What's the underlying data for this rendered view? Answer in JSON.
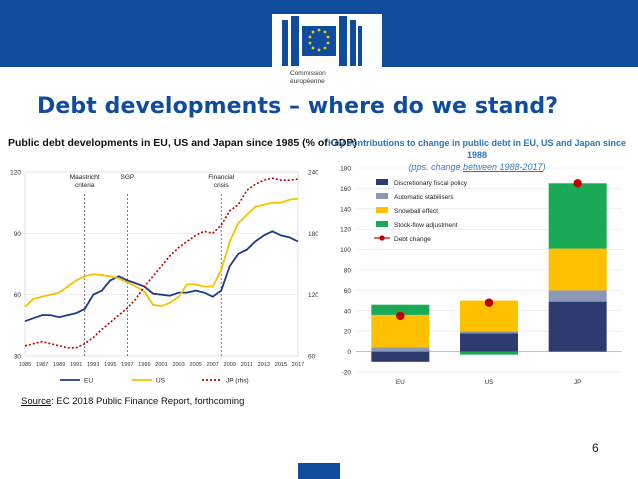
{
  "header": {
    "logo_label": "European Commission emblem",
    "logo_text_line1": "Commission",
    "logo_text_line2": "européenne"
  },
  "slide": {
    "title": "Debt developments – where do we stand?",
    "source_label": "Source",
    "source_text": ": EC 2018 Public Finance Report, forthcoming",
    "page_number": "6"
  },
  "colors": {
    "brand": "#0f4c9c",
    "eu": "#1f3c88",
    "us": "#f5c200",
    "jp": "#c00000",
    "discretionary": "#2e3b6e",
    "auto": "#8a98b8",
    "snowball": "#ffc000",
    "stockflow": "#1aaa55",
    "debtchange": "#c00000"
  },
  "chart_data": [
    {
      "type": "line",
      "title": "Public debt developments in EU, US and Japan since 1985 (% of GDP)",
      "x_tick_labels": [
        "1985",
        "1987",
        "1989",
        "1991",
        "1993",
        "1995",
        "1997",
        "1999",
        "2001",
        "2003",
        "2005",
        "2007",
        "2009",
        "2011",
        "2013",
        "2015",
        "2017"
      ],
      "x_range": [
        1985,
        2017
      ],
      "y_left_ticks": [
        30,
        60,
        90,
        120
      ],
      "y_left_range": [
        30,
        120
      ],
      "y_right_ticks": [
        60,
        120,
        180,
        240
      ],
      "y_right_range": [
        60,
        240
      ],
      "annotations": [
        {
          "year": 1992,
          "line1": "Maastricht",
          "line2": "criteria"
        },
        {
          "year": 1997,
          "line1": "SGP",
          "line2": ""
        },
        {
          "year": 2008,
          "line1": "Financial",
          "line2": "crisis"
        }
      ],
      "series": [
        {
          "name": "EU",
          "axis": "left",
          "x": [
            1985,
            1986,
            1987,
            1988,
            1989,
            1990,
            1991,
            1992,
            1993,
            1994,
            1995,
            1996,
            1997,
            1998,
            1999,
            2000,
            2001,
            2002,
            2003,
            2004,
            2005,
            2006,
            2007,
            2008,
            2009,
            2010,
            2011,
            2012,
            2013,
            2014,
            2015,
            2016,
            2017
          ],
          "values": [
            47,
            48.5,
            50,
            50,
            49,
            50,
            51,
            53,
            60,
            62,
            67,
            69,
            67,
            65.5,
            64,
            60.5,
            60,
            59.5,
            61,
            61,
            62,
            61,
            59,
            62,
            74,
            80,
            82,
            86,
            89,
            91,
            89,
            88,
            86
          ]
        },
        {
          "name": "US",
          "axis": "left",
          "x": [
            1985,
            1986,
            1987,
            1988,
            1989,
            1990,
            1991,
            1992,
            1993,
            1994,
            1995,
            1996,
            1997,
            1998,
            1999,
            2000,
            2001,
            2002,
            2003,
            2004,
            2005,
            2006,
            2007,
            2008,
            2009,
            2010,
            2011,
            2012,
            2013,
            2014,
            2015,
            2016,
            2017
          ],
          "values": [
            54,
            58,
            59,
            60,
            61,
            64,
            67,
            69,
            70,
            69.5,
            69,
            68,
            66,
            64,
            61.5,
            55,
            54.5,
            56,
            59,
            65,
            65,
            64,
            64,
            72,
            86,
            95,
            99,
            103,
            104,
            105,
            105,
            106.5,
            107
          ]
        },
        {
          "name": "JP (rhs)",
          "axis": "right",
          "x": [
            1985,
            1986,
            1987,
            1988,
            1989,
            1990,
            1991,
            1992,
            1993,
            1994,
            1995,
            1996,
            1997,
            1998,
            1999,
            2000,
            2001,
            2002,
            2003,
            2004,
            2005,
            2006,
            2007,
            2008,
            2009,
            2010,
            2011,
            2012,
            2013,
            2014,
            2015,
            2016,
            2017
          ],
          "values": [
            70,
            72,
            74,
            72,
            70,
            68,
            68,
            72,
            78,
            86,
            93,
            100,
            107,
            116,
            128,
            138,
            148,
            158,
            166,
            172,
            178,
            182,
            180,
            188,
            202,
            208,
            222,
            228,
            232,
            234,
            232,
            232,
            233
          ]
        }
      ],
      "legend": [
        "EU",
        "US",
        "JP (rhs)"
      ]
    },
    {
      "type": "bar",
      "title": "Key contributions to change in public debt in EU, US and Japan since 1988",
      "subtitle_prefix": "(pps. change ",
      "subtitle_underlined": "between 1988-2017",
      "subtitle_suffix": ")",
      "categories": [
        "EU",
        "US",
        "JP"
      ],
      "y_ticks": [
        -20,
        0,
        20,
        40,
        60,
        80,
        100,
        120,
        140,
        160,
        180
      ],
      "ylim": [
        -20,
        180
      ],
      "series": [
        {
          "name": "Discretionary fiscal policy",
          "values": [
            -10,
            18,
            49
          ]
        },
        {
          "name": "Automatic stabilisers",
          "values": [
            4,
            2,
            11
          ]
        },
        {
          "name": "Snowball effect",
          "values": [
            32,
            30,
            41
          ]
        },
        {
          "name": "Stock-flow adjustment",
          "values": [
            10,
            -3,
            64
          ]
        }
      ],
      "debt_change": {
        "name": "Debt change",
        "values": [
          35,
          48,
          165
        ]
      },
      "legend": [
        "Discretionary fiscal policy",
        "Automatic stabilisers",
        "Snowball effect",
        "Stock-flow adjustment",
        "Debt change"
      ]
    }
  ]
}
